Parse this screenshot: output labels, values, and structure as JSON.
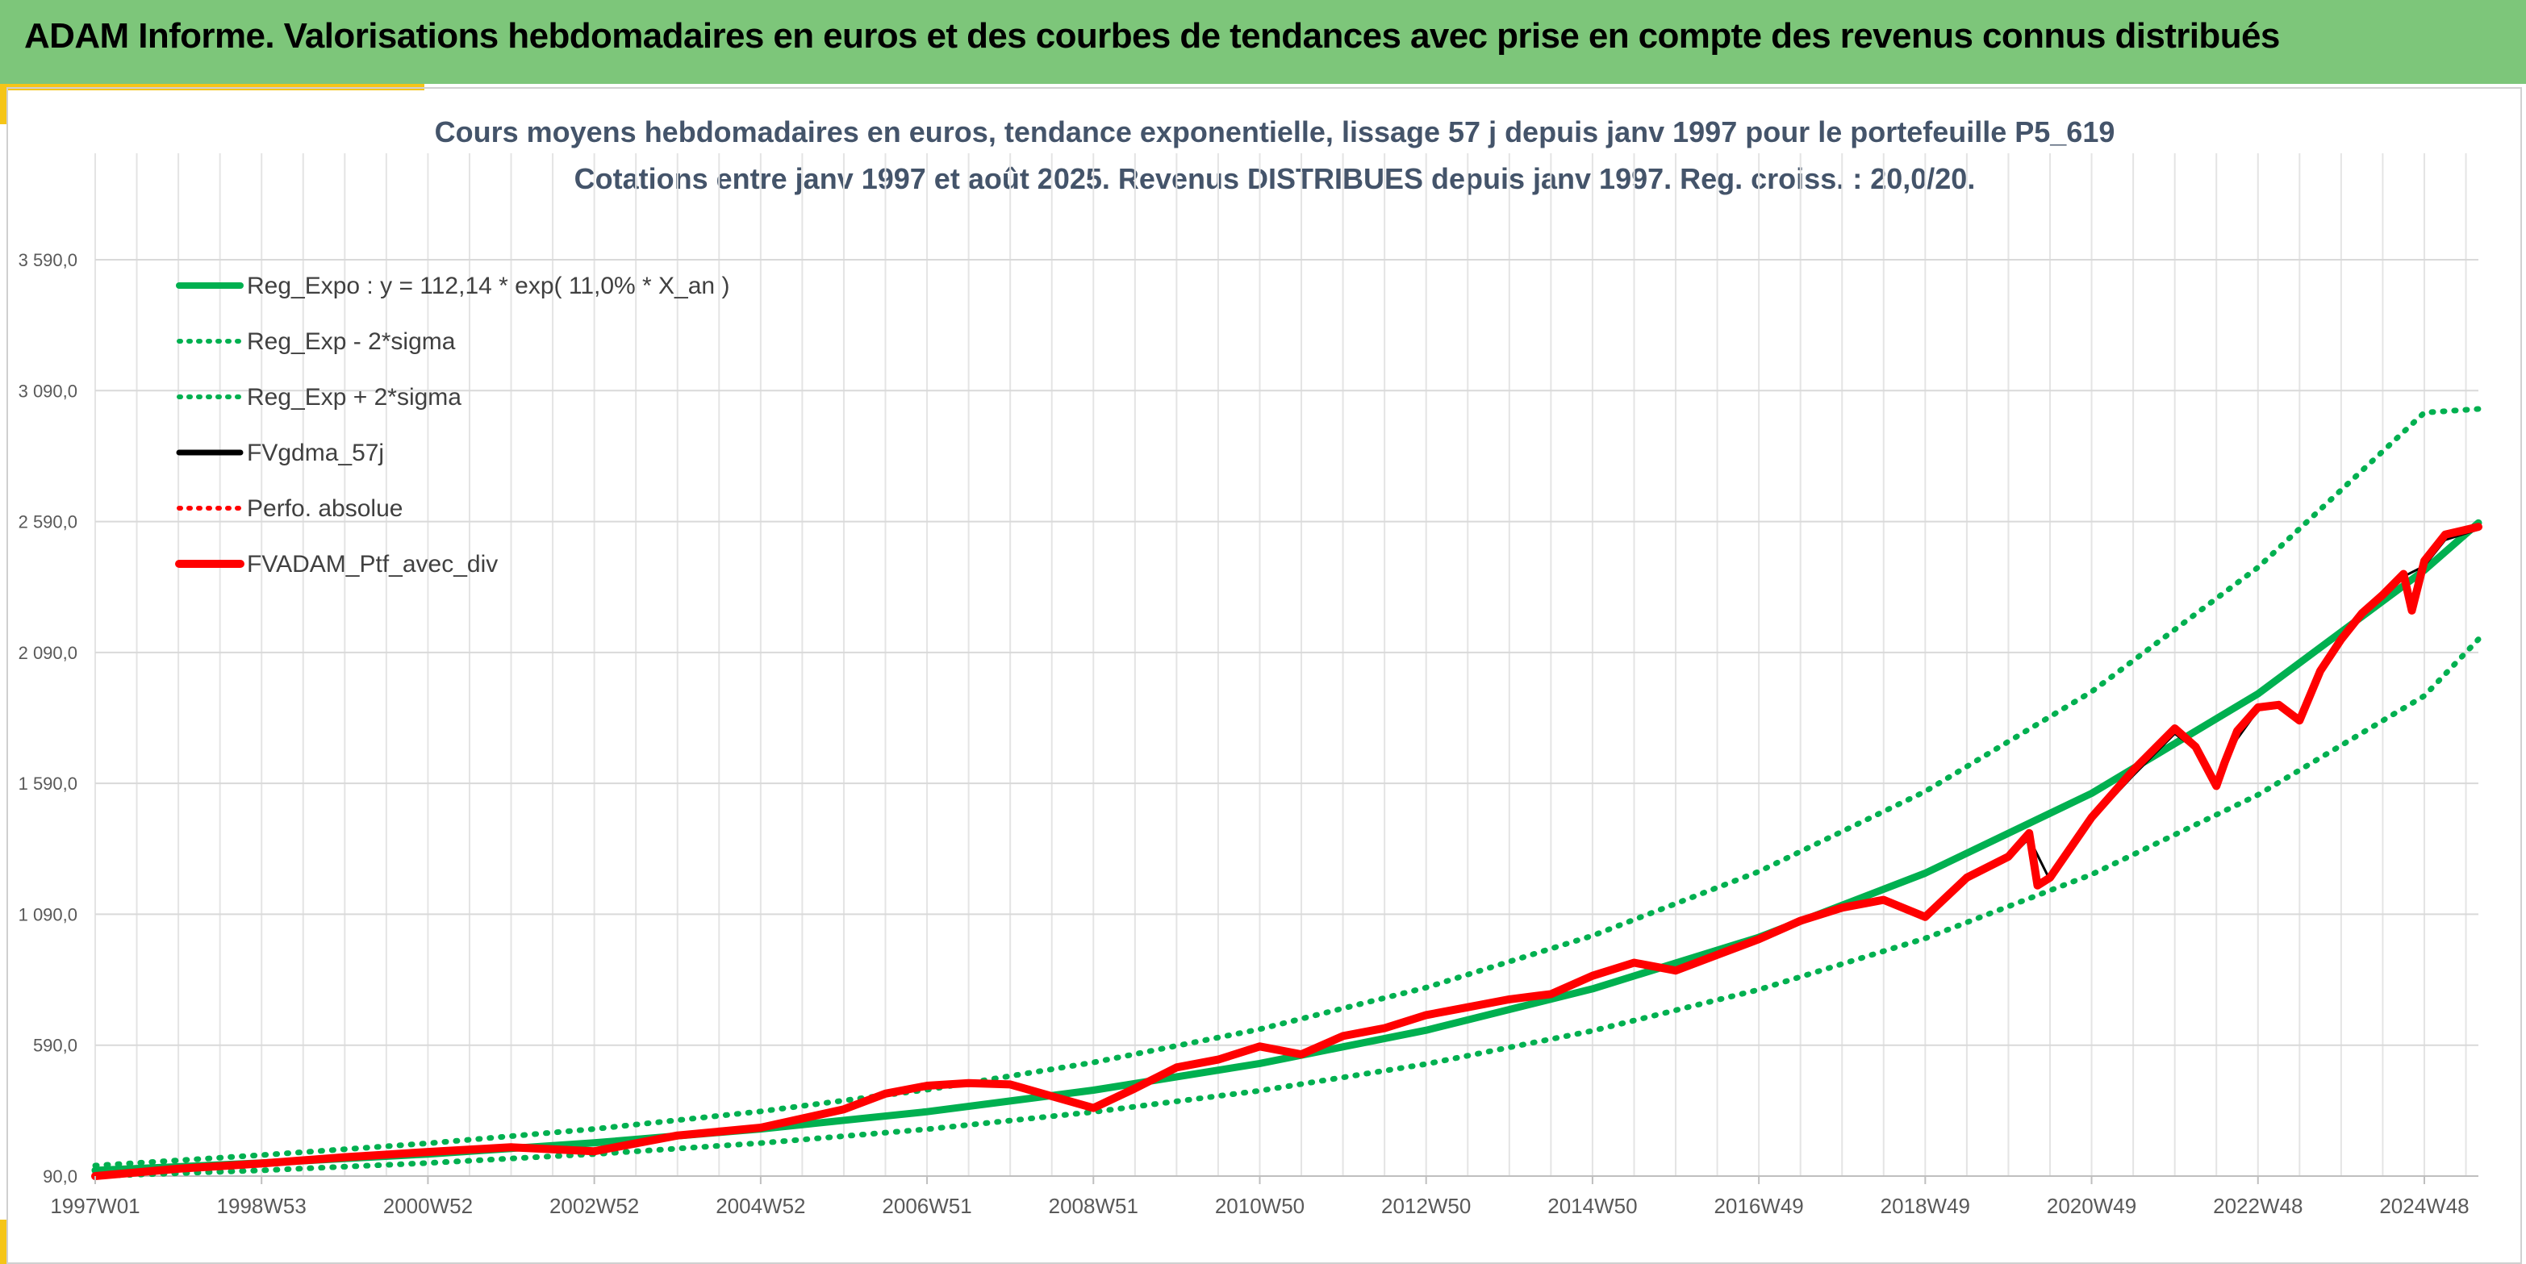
{
  "header": {
    "title": "ADAM Informe. Valorisations hebdomadaires en euros et des courbes de tendances avec prise en compte des revenus connus distribués"
  },
  "colors": {
    "header_bg": "#7dc67a",
    "accent": "#f5c518",
    "green": "#00b050",
    "red": "#ff0000",
    "black": "#000000"
  },
  "chart_data": {
    "type": "line",
    "title": "Cours moyens hebdomadaires en euros, tendance exponentielle, lissage 57 j depuis janv 1997 pour le portefeuille P5_619",
    "subtitle": "Cotations entre janv 1997 et août 2025. Revenus DISTRIBUES depuis janv 1997. Reg. croiss. : 20,0/20.",
    "xlabel": "",
    "ylabel": "",
    "ylim": [
      90,
      3590
    ],
    "x_range": [
      1997.0,
      2025.65
    ],
    "y_ticks": [
      "90,0",
      "590,0",
      "1 090,0",
      "1 590,0",
      "2 090,0",
      "2 590,0",
      "3 090,0",
      "3 590,0"
    ],
    "y_tick_values": [
      90,
      590,
      1090,
      1590,
      2090,
      2590,
      3090,
      3590
    ],
    "x_ticks": [
      "1997W01",
      "1998W53",
      "2000W52",
      "2002W52",
      "2004W52",
      "2006W51",
      "2008W51",
      "2010W50",
      "2012W50",
      "2014W50",
      "2016W49",
      "2018W49",
      "2020W49",
      "2022W48",
      "2024W48"
    ],
    "x_tick_years": [
      1997.0,
      1999.0,
      2001.0,
      2003.0,
      2005.0,
      2007.0,
      2009.0,
      2011.0,
      2013.0,
      2015.0,
      2017.0,
      2019.0,
      2021.0,
      2023.0,
      2025.0
    ],
    "grid": true,
    "legend_position": "top-left",
    "legend": [
      {
        "label": "Reg_Expo : y = 112,14 * exp( 11,0% *  X_an )",
        "color": "#00b050",
        "style": "solid"
      },
      {
        "label": "Reg_Exp - 2*sigma",
        "color": "#00b050",
        "style": "dotted"
      },
      {
        "label": "Reg_Exp + 2*sigma",
        "color": "#00b050",
        "style": "dotted"
      },
      {
        "label": "FVgdma_57j",
        "color": "#000000",
        "style": "solid"
      },
      {
        "label": "Perfo. absolue",
        "color": "#ff0000",
        "style": "dotted"
      },
      {
        "label": "FVADAM_Ptf_avec_div",
        "color": "#ff0000",
        "style": "thick"
      }
    ],
    "series": [
      {
        "name": "Reg_Expo : y = 112,14 * exp( 11,0% *  X_an )",
        "x": [
          1997.0,
          1999.0,
          2001.0,
          2003.0,
          2005.0,
          2007.0,
          2009.0,
          2011.0,
          2013.0,
          2015.0,
          2017.0,
          2019.0,
          2021.0,
          2023.0,
          2025.0,
          2025.65
        ],
        "y": [
          112,
          140,
          174,
          217,
          270,
          336,
          418,
          520,
          647,
          805,
          1002,
          1247,
          1552,
          1932,
          2404,
          2585
        ]
      },
      {
        "name": "Reg_Exp - 2*sigma",
        "x": [
          1997.0,
          1999.0,
          2001.0,
          2003.0,
          2005.0,
          2007.0,
          2009.0,
          2011.0,
          2013.0,
          2015.0,
          2017.0,
          2019.0,
          2021.0,
          2023.0,
          2025.0,
          2025.65
        ],
        "y": [
          90,
          112,
          140,
          174,
          216,
          269,
          335,
          416,
          518,
          645,
          802,
          998,
          1242,
          1546,
          1924,
          2140
        ]
      },
      {
        "name": "Reg_Exp + 2*sigma",
        "x": [
          1997.0,
          1999.0,
          2001.0,
          2003.0,
          2005.0,
          2007.0,
          2009.0,
          2011.0,
          2013.0,
          2015.0,
          2017.0,
          2019.0,
          2021.0,
          2023.0,
          2025.0,
          2025.65
        ],
        "y": [
          130,
          170,
          215,
          270,
          337,
          420,
          524,
          651,
          810,
          1008,
          1253,
          1559,
          1940,
          2415,
          3006,
          3020
        ]
      },
      {
        "name": "FVgdma_57j",
        "x": [
          1997.0,
          1998.0,
          1999.0,
          2000.0,
          2001.0,
          2002.0,
          2003.0,
          2004.0,
          2005.0,
          2006.0,
          2006.5,
          2007.0,
          2007.5,
          2008.0,
          2008.5,
          2009.0,
          2009.5,
          2010.0,
          2010.5,
          2011.0,
          2011.5,
          2012.0,
          2012.5,
          2013.0,
          2013.5,
          2014.0,
          2014.5,
          2015.0,
          2015.5,
          2016.0,
          2016.5,
          2017.0,
          2017.5,
          2018.0,
          2018.5,
          2019.0,
          2019.5,
          2020.0,
          2020.25,
          2020.5,
          2021.0,
          2021.5,
          2022.0,
          2022.25,
          2022.5,
          2022.75,
          2023.0,
          2023.25,
          2023.5,
          2023.75,
          2024.0,
          2024.25,
          2024.5,
          2024.75,
          2025.0,
          2025.25,
          2025.65
        ],
        "y": [
          90,
          120,
          140,
          160,
          180,
          200,
          190,
          240,
          270,
          340,
          400,
          430,
          440,
          440,
          400,
          360,
          420,
          500,
          530,
          580,
          560,
          620,
          650,
          700,
          730,
          760,
          780,
          850,
          900,
          880,
          930,
          990,
          1060,
          1110,
          1140,
          1090,
          1220,
          1300,
          1380,
          1220,
          1450,
          1620,
          1780,
          1720,
          1590,
          1760,
          1870,
          1880,
          1840,
          2010,
          2130,
          2230,
          2300,
          2380,
          2420,
          2520,
          2560
        ]
      },
      {
        "name": "FVADAM_Ptf_avec_div",
        "x": [
          1997.0,
          1998.0,
          1999.0,
          2000.0,
          2001.0,
          2002.0,
          2003.0,
          2004.0,
          2005.0,
          2006.0,
          2006.5,
          2007.0,
          2007.5,
          2008.0,
          2008.5,
          2009.0,
          2009.5,
          2010.0,
          2010.5,
          2011.0,
          2011.5,
          2012.0,
          2012.5,
          2013.0,
          2013.5,
          2014.0,
          2014.5,
          2015.0,
          2015.5,
          2016.0,
          2016.5,
          2017.0,
          2017.5,
          2018.0,
          2018.5,
          2019.0,
          2019.5,
          2020.0,
          2020.25,
          2020.35,
          2020.5,
          2021.0,
          2021.5,
          2022.0,
          2022.25,
          2022.5,
          2022.6,
          2022.75,
          2023.0,
          2023.25,
          2023.5,
          2023.75,
          2024.0,
          2024.25,
          2024.5,
          2024.75,
          2024.85,
          2025.0,
          2025.25,
          2025.65
        ],
        "y": [
          90,
          118,
          138,
          162,
          182,
          200,
          185,
          245,
          275,
          345,
          405,
          435,
          445,
          440,
          395,
          350,
          425,
          505,
          535,
          585,
          555,
          625,
          655,
          705,
          735,
          765,
          785,
          855,
          905,
          875,
          935,
          995,
          1065,
          1115,
          1145,
          1080,
          1230,
          1310,
          1400,
          1200,
          1230,
          1460,
          1640,
          1800,
          1730,
          1580,
          1670,
          1790,
          1880,
          1890,
          1830,
          2020,
          2140,
          2240,
          2310,
          2390,
          2250,
          2440,
          2540,
          2570
        ]
      }
    ]
  }
}
